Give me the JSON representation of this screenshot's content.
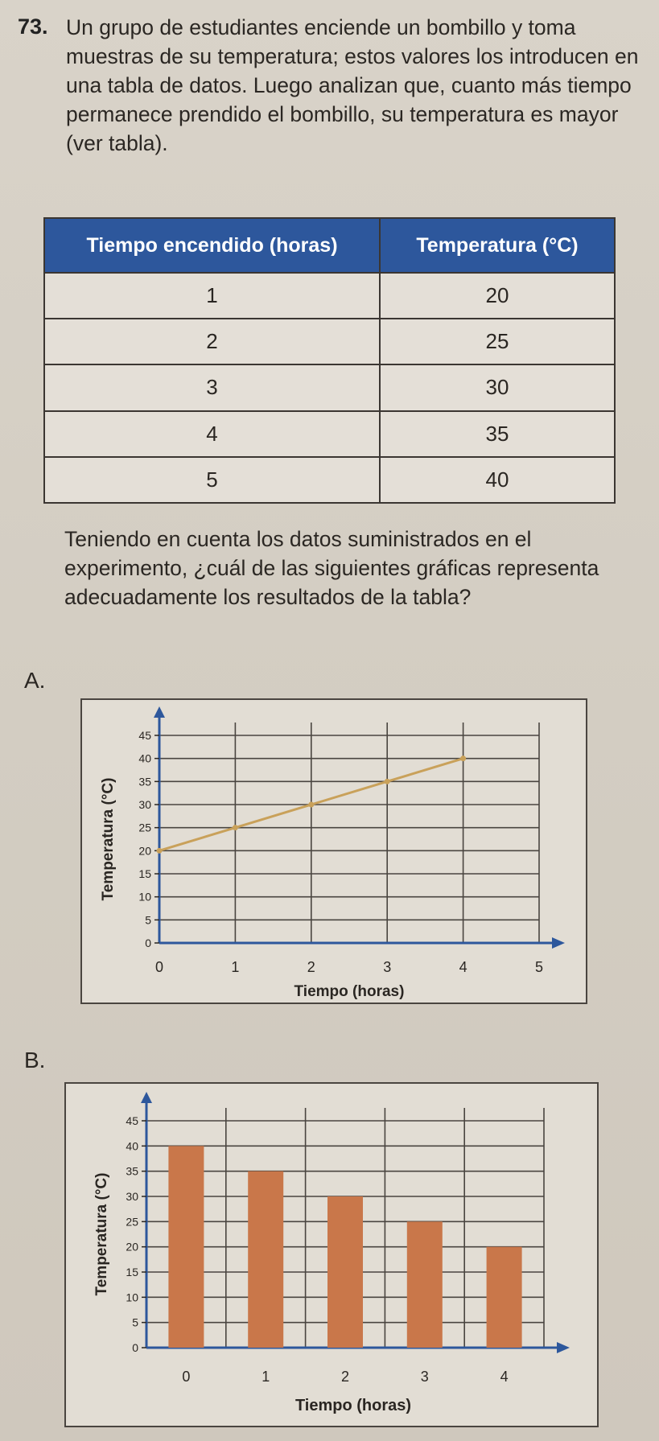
{
  "question": {
    "number": "73.",
    "intro": "Un grupo de estudiantes enciende un bombillo y toma muestras de su temperatura; estos valores los introducen en una tabla de datos. Luego analizan que, cuanto más tiempo permanece prendido el bombillo, su temperatura es mayor (ver tabla).",
    "prompt": "Teniendo en cuenta los datos suministrados en el experimento, ¿cuál de las siguientes gráficas representa adecuadamente los resultados de la tabla?"
  },
  "table": {
    "headers": [
      "Tiempo encendido (horas)",
      "Temperatura (°C)"
    ],
    "rows": [
      {
        "time": "1",
        "temp": "20"
      },
      {
        "time": "2",
        "temp": "25"
      },
      {
        "time": "3",
        "temp": "30"
      },
      {
        "time": "4",
        "temp": "35"
      },
      {
        "time": "5",
        "temp": "40"
      }
    ]
  },
  "options": [
    {
      "letter": "A.",
      "chart_index": 0
    },
    {
      "letter": "B.",
      "chart_index": 1
    }
  ],
  "colors": {
    "header_bg": "#2d579c",
    "line": "#c9a15a",
    "bar": "#c9774a"
  },
  "chart_data": [
    {
      "type": "line",
      "xlabel": "Tiempo (horas)",
      "ylabel": "Temperatura (°C)",
      "x_ticks": [
        "0",
        "1",
        "2",
        "3",
        "4",
        "5"
      ],
      "y_ticks": [
        "0",
        "5",
        "10",
        "15",
        "20",
        "25",
        "30",
        "35",
        "40",
        "45"
      ],
      "xlim": [
        0,
        5
      ],
      "ylim": [
        0,
        45
      ],
      "grid": true,
      "series": [
        {
          "x": [
            0,
            1,
            2,
            3,
            4
          ],
          "y": [
            20,
            25,
            30,
            35,
            40
          ]
        }
      ]
    },
    {
      "type": "bar",
      "xlabel": "Tiempo (horas)",
      "ylabel": "Temperatura (°C)",
      "categories": [
        "0",
        "1",
        "2",
        "3",
        "4"
      ],
      "values": [
        40,
        35,
        30,
        25,
        20
      ],
      "y_ticks": [
        "0",
        "5",
        "10",
        "15",
        "20",
        "25",
        "30",
        "35",
        "40",
        "45"
      ],
      "ylim": [
        0,
        45
      ],
      "grid": true
    }
  ]
}
